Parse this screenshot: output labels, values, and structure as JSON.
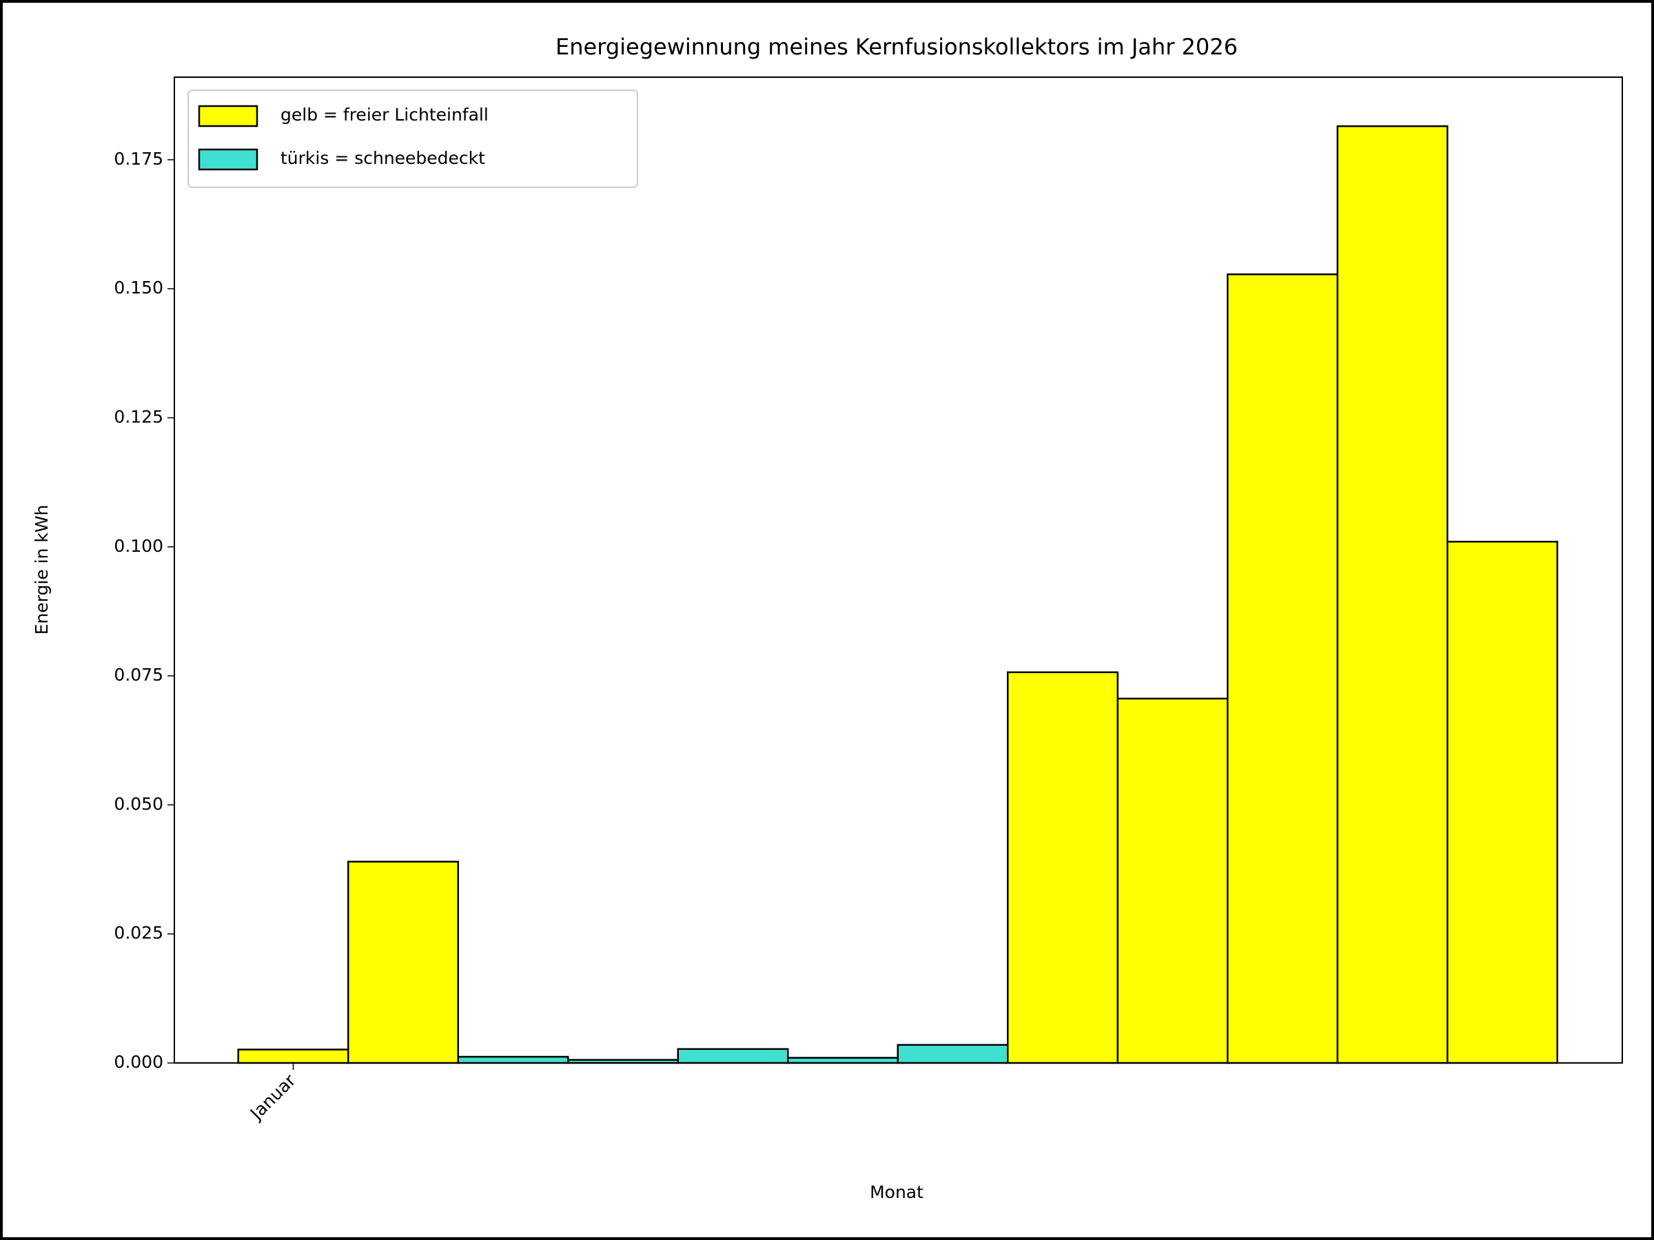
{
  "chart_data": {
    "type": "bar",
    "title": "Energiegewinnung meines Kernfusionskollektors im Jahr 2026",
    "x_label": "Monat",
    "y_label": "Energie in kWh",
    "categories": [
      "Januar",
      null,
      null,
      null,
      null,
      null,
      null,
      null,
      null,
      null,
      null,
      null
    ],
    "series": [
      {
        "name": "gelb = freier Lichteinfall",
        "color": "#ffff00",
        "values": [
          0.0026,
          0.039,
          null,
          null,
          null,
          null,
          null,
          0.0757,
          0.0706,
          0.1528,
          0.1815,
          0.101
        ]
      },
      {
        "name": "türkis = schneebedeckt",
        "color": "#40e0d0",
        "values": [
          null,
          null,
          0.0012,
          0.0006,
          0.0027,
          0.001,
          0.0035,
          null,
          null,
          null,
          null,
          null
        ]
      }
    ],
    "ylim": [
      0,
      0.191
    ],
    "yticks": [
      {
        "value": 0,
        "label": "0.000"
      },
      {
        "value": 0.025,
        "label": "0.025"
      },
      {
        "value": 0.05,
        "label": "0.050"
      },
      {
        "value": 0.075,
        "label": "0.075"
      },
      {
        "value": 0.1,
        "label": "0.100"
      },
      {
        "value": 0.125,
        "label": "0.125"
      },
      {
        "value": 0.15,
        "label": "0.150"
      },
      {
        "value": 0.175,
        "label": "0.175"
      }
    ],
    "legend": "upper left",
    "grid": false
  }
}
